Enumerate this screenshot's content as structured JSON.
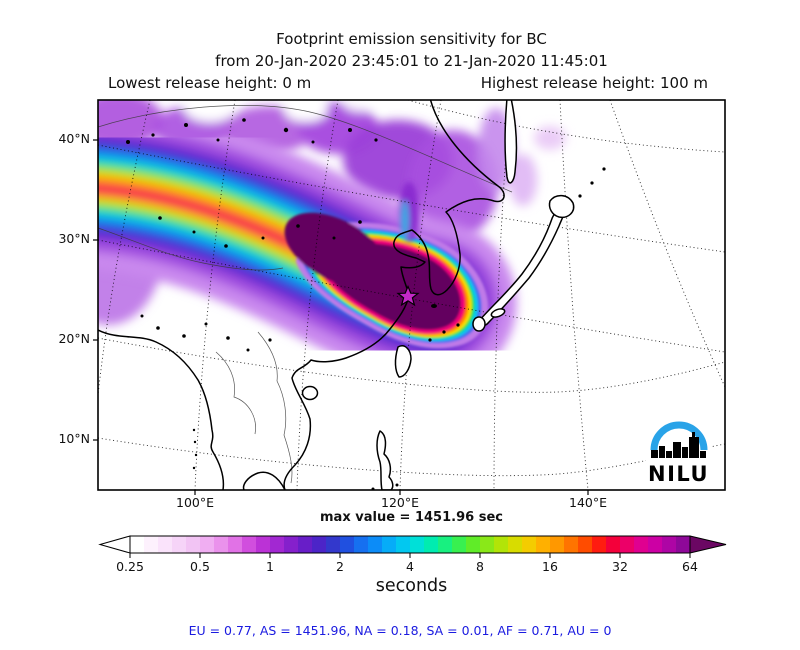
{
  "title": {
    "line1": "Footprint emission sensitivity for BC",
    "line2": "from 20-Jan-2020 23:45:01 to 21-Jan-2020 11:45:01",
    "height_left": "Lowest release height: 0 m",
    "height_right": "Highest release height: 100 m"
  },
  "map": {
    "lat_labels": [
      "40°N",
      "30°N",
      "20°N",
      "10°N"
    ],
    "lon_labels": [
      "100°E",
      "120°E",
      "140°E"
    ],
    "logo_text": "NILU",
    "logo_arc_color": "#29a3e8",
    "source_marker": "star-at-release-location",
    "star_fill": "#c428c8"
  },
  "colorbar": {
    "max_value_label": "max value = 1451.96 sec",
    "ticks": [
      "0.25",
      "0.5",
      "1",
      "2",
      "4",
      "8",
      "16",
      "32",
      "64"
    ],
    "unit_label": "seconds",
    "left_arrow_color": "#ffffff",
    "right_arrow_color": "#6b0763",
    "segments": [
      "#ffffff",
      "#fdf1fd",
      "#fae3fb",
      "#f6d4f8",
      "#f2c4f4",
      "#f0aef2",
      "#ea92ec",
      "#e172e6",
      "#d14ede",
      "#bb32d6",
      "#a228d2",
      "#8520cc",
      "#681ec8",
      "#4c24c8",
      "#3338cc",
      "#2050e0",
      "#1670f0",
      "#0c8cf8",
      "#06acf8",
      "#02c8f0",
      "#00e0d8",
      "#00ecb0",
      "#18f080",
      "#38f050",
      "#60ec28",
      "#8ae818",
      "#b2e408",
      "#d8dc00",
      "#f4cc00",
      "#ffb000",
      "#ff9800",
      "#ff7400",
      "#ff4c00",
      "#ff1c10",
      "#f4003a",
      "#ec0068",
      "#e00090",
      "#cc00a4",
      "#ae05a5",
      "#8e0899"
    ]
  },
  "annotation": {
    "text": "EU = 0.77,  AS = 1451.96,  NA = 0.18,  SA = 0.01,  AF = 0.71,  AU = 0",
    "color": "#1b1be0"
  },
  "chart_data": {
    "type": "heatmap",
    "subtype": "geographic-footprint-map",
    "species": "BC",
    "title": "Footprint emission sensitivity for BC",
    "time_range": {
      "from": "20-Jan-2020 23:45:01",
      "to": "21-Jan-2020 11:45:01"
    },
    "release_height_m": {
      "lowest": 0,
      "highest": 100
    },
    "units": "seconds",
    "max_value_sec": 1451.96,
    "colorbar_scale": "log2",
    "colorbar_tick_values": [
      0.25,
      0.5,
      1,
      2,
      4,
      8,
      16,
      32,
      64
    ],
    "region_totals": {
      "EU": 0.77,
      "AS": 1451.96,
      "NA": 0.18,
      "SA": 0.01,
      "AF": 0.71,
      "AU": 0
    },
    "map_extent": {
      "lat_ticks_deg_n": [
        40,
        30,
        20,
        10
      ],
      "lon_ticks_deg_e": [
        100,
        120,
        140
      ]
    },
    "plume_description": "High-sensitivity plume (max near release point on China east coast near 120E/30N, marked with a star) extending west-northwest across China; darkest purple (>64 s) core near the coast, rainbow banded halo toward 90E/40N.",
    "grid": "dotted graticule on",
    "legend_position": "horizontal colorbar below map"
  }
}
